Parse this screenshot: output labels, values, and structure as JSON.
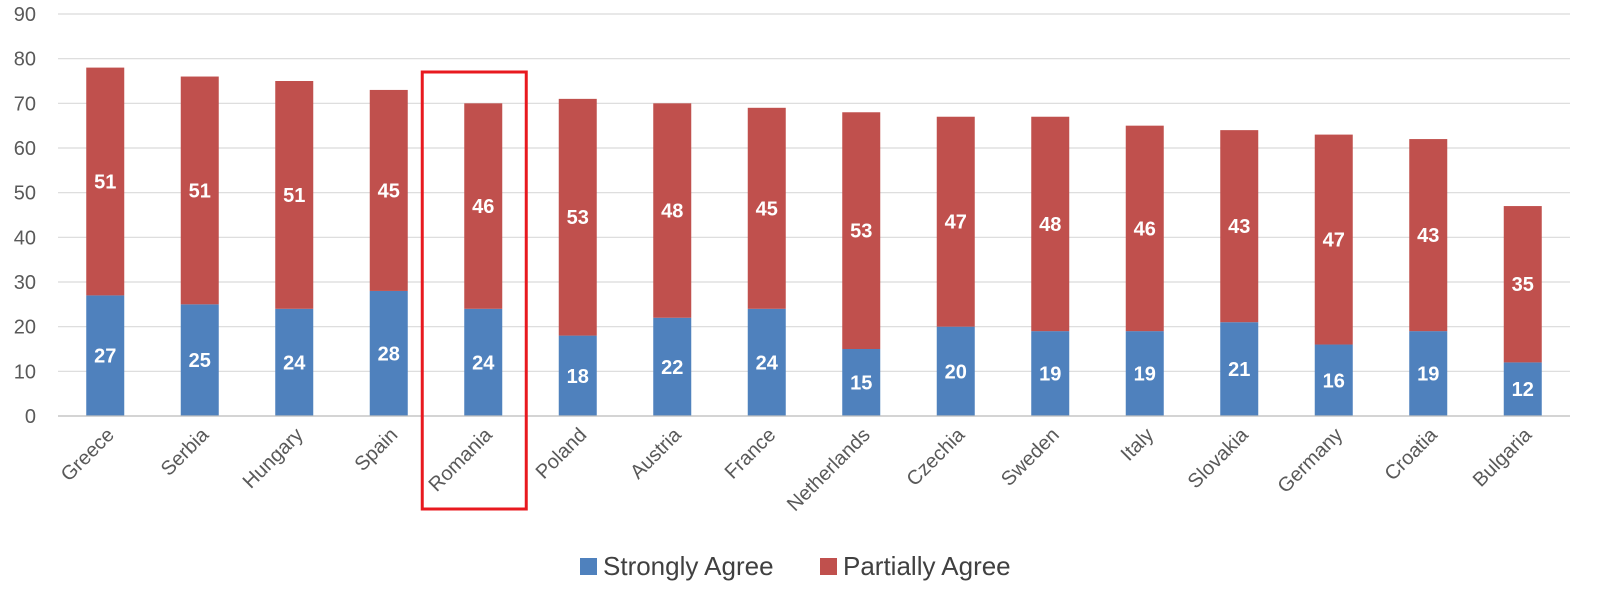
{
  "chart_data": {
    "type": "bar",
    "stacked": true,
    "categories": [
      "Greece",
      "Serbia",
      "Hungary",
      "Spain",
      "Romania",
      "Poland",
      "Austria",
      "France",
      "Netherlands",
      "Czechia",
      "Sweden",
      "Italy",
      "Slovakia",
      "Germany",
      "Croatia",
      "Bulgaria"
    ],
    "series": [
      {
        "name": "Strongly Agree",
        "color": "#4f81bd",
        "values": [
          27,
          25,
          24,
          28,
          24,
          18,
          22,
          24,
          15,
          20,
          19,
          19,
          21,
          16,
          19,
          12
        ]
      },
      {
        "name": "Partially Agree",
        "color": "#c0504d",
        "values": [
          51,
          51,
          51,
          45,
          46,
          53,
          48,
          45,
          53,
          47,
          48,
          46,
          43,
          47,
          43,
          35
        ]
      }
    ],
    "yticks": [
      "0",
      "10",
      "20",
      "30",
      "40",
      "50",
      "60",
      "70",
      "80",
      "90"
    ],
    "ylim": [
      0,
      90
    ],
    "grid": true,
    "legend_position": "bottom",
    "highlighted_category": "Romania",
    "highlight_color": "#e8191f"
  }
}
